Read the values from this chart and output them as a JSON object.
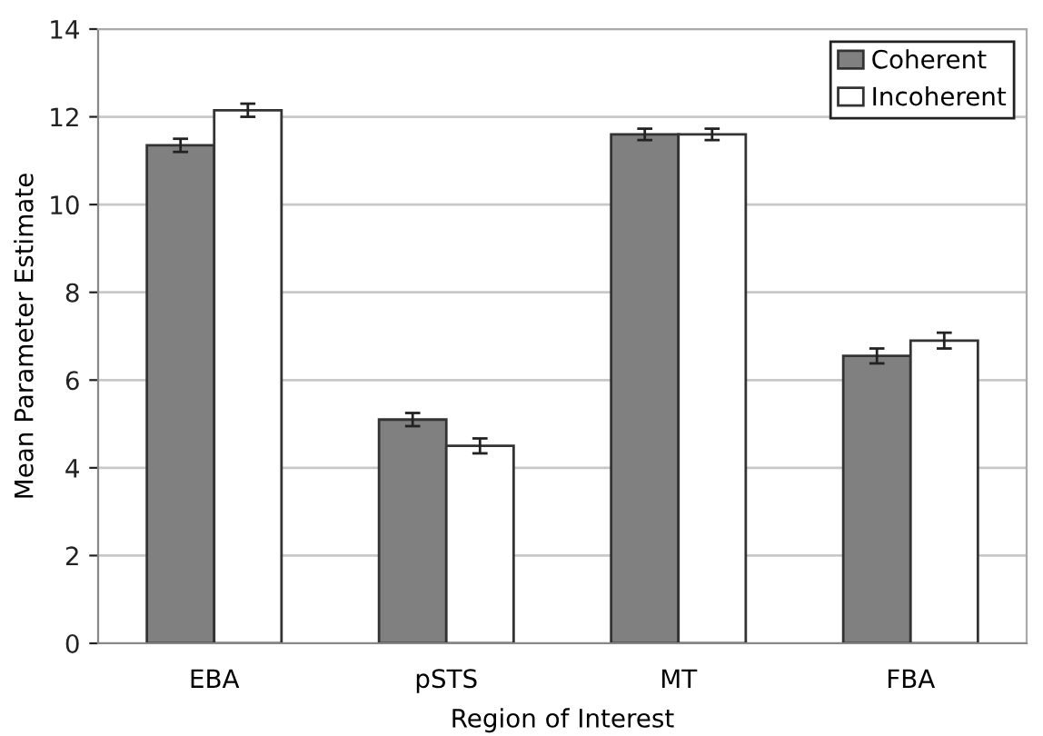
{
  "chart_data": {
    "type": "bar",
    "xlabel": "Region of Interest",
    "ylabel": "Mean Parameter Estimate",
    "categories": [
      "EBA",
      "pSTS",
      "MT",
      "FBA"
    ],
    "series": [
      {
        "name": "Coherent",
        "color": "#808080",
        "values": [
          11.35,
          5.1,
          11.6,
          6.55
        ],
        "errors": [
          0.15,
          0.15,
          0.13,
          0.17
        ]
      },
      {
        "name": "Incoherent",
        "color": "#ffffff",
        "values": [
          12.15,
          4.5,
          11.6,
          6.9
        ],
        "errors": [
          0.15,
          0.17,
          0.13,
          0.18
        ]
      }
    ],
    "ylim": [
      0,
      14
    ],
    "yticks": [
      0,
      2,
      4,
      6,
      8,
      10,
      12,
      14
    ],
    "grid": "y",
    "legend": "top right"
  }
}
